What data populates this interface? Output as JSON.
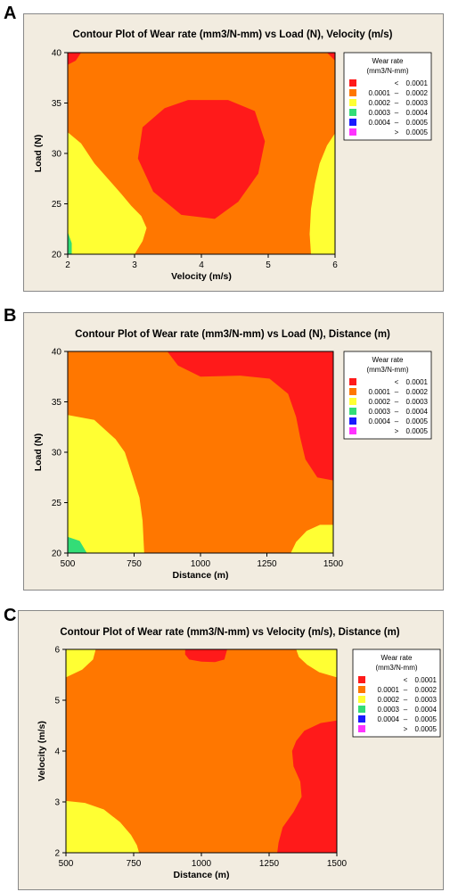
{
  "chart_data": [
    {
      "type": "contour",
      "panel_label": "A",
      "title": "Contour Plot of Wear rate (mm3/N-mm) vs Load (N), Velocity (m/s)",
      "xlabel": "Velocity (m/s)",
      "ylabel": "Load (N)",
      "xlim": [
        2,
        6
      ],
      "ylim": [
        20,
        40
      ],
      "xticks": [
        "2",
        "3",
        "4",
        "5",
        "6"
      ],
      "yticks": [
        "20",
        "25",
        "30",
        "35",
        "40"
      ],
      "background_band": "0.0001 – 0.0002",
      "regions": [
        {
          "band": "< 0.0001",
          "points": [
            [
              2,
              40
            ],
            [
              2.2,
              40
            ],
            [
              2.12,
              39.2
            ],
            [
              2,
              38.8
            ]
          ]
        },
        {
          "band": "< 0.0001",
          "points": [
            [
              5.88,
              40
            ],
            [
              6,
              40
            ],
            [
              6,
              39.2
            ]
          ]
        },
        {
          "band": "< 0.0001",
          "points": [
            [
              3.45,
              34.5
            ],
            [
              3.8,
              35.3
            ],
            [
              4.4,
              35.3
            ],
            [
              4.8,
              34.2
            ],
            [
              4.95,
              31.2
            ],
            [
              4.85,
              28
            ],
            [
              4.55,
              25.2
            ],
            [
              4.2,
              23.5
            ],
            [
              3.7,
              23.9
            ],
            [
              3.28,
              26.2
            ],
            [
              3.05,
              29.5
            ],
            [
              3.12,
              32.6
            ]
          ]
        },
        {
          "band": "0.0002 – 0.0003",
          "points": [
            [
              2,
              32.1
            ],
            [
              2.2,
              31
            ],
            [
              2.4,
              29
            ],
            [
              2.6,
              27.5
            ],
            [
              2.8,
              26
            ],
            [
              2.95,
              24.8
            ],
            [
              3.1,
              23.8
            ],
            [
              3.18,
              22.6
            ],
            [
              3.12,
              21.3
            ],
            [
              3,
              20
            ],
            [
              2,
              20
            ]
          ]
        },
        {
          "band": "0.0002 – 0.0003",
          "points": [
            [
              6,
              32
            ],
            [
              5.88,
              30.8
            ],
            [
              5.77,
              29
            ],
            [
              5.7,
              27
            ],
            [
              5.64,
              24.5
            ],
            [
              5.62,
              22
            ],
            [
              5.64,
              20
            ],
            [
              6,
              20
            ]
          ]
        },
        {
          "band": "0.0003 – 0.0004",
          "points": [
            [
              2,
              22.2
            ],
            [
              2.06,
              21.1
            ],
            [
              2.06,
              20
            ],
            [
              2,
              20
            ]
          ]
        }
      ]
    },
    {
      "type": "contour",
      "panel_label": "B",
      "title": "Contour Plot of Wear rate (mm3/N-mm) vs Load (N), Distance (m)",
      "xlabel": "Distance (m)",
      "ylabel": "Load (N)",
      "xlim": [
        500,
        1500
      ],
      "ylim": [
        20,
        40
      ],
      "xticks": [
        "500",
        "750",
        "1000",
        "1250",
        "1500"
      ],
      "yticks": [
        "20",
        "25",
        "30",
        "35",
        "40"
      ],
      "background_band": "0.0001 – 0.0002",
      "regions": [
        {
          "band": "< 0.0001",
          "points": [
            [
              875,
              40
            ],
            [
              1500,
              40
            ],
            [
              1500,
              27.2
            ],
            [
              1440,
              27.5
            ],
            [
              1395,
              29.3
            ],
            [
              1375,
              31.5
            ],
            [
              1360,
              33.5
            ],
            [
              1330,
              35.8
            ],
            [
              1260,
              37.3
            ],
            [
              1150,
              37.6
            ],
            [
              1000,
              37.5
            ],
            [
              915,
              38.6
            ]
          ]
        },
        {
          "band": "0.0002 – 0.0003",
          "points": [
            [
              500,
              33.7
            ],
            [
              600,
              33.2
            ],
            [
              680,
              31.3
            ],
            [
              715,
              30
            ],
            [
              740,
              28
            ],
            [
              770,
              25.5
            ],
            [
              782,
              23.2
            ],
            [
              788,
              20
            ],
            [
              500,
              20
            ]
          ]
        },
        {
          "band": "0.0002 – 0.0003",
          "points": [
            [
              1340,
              20
            ],
            [
              1360,
              21.1
            ],
            [
              1400,
              22.2
            ],
            [
              1450,
              22.8
            ],
            [
              1500,
              22.8
            ],
            [
              1500,
              20
            ]
          ]
        },
        {
          "band": "0.0003 – 0.0004",
          "points": [
            [
              500,
              21.6
            ],
            [
              545,
              21.2
            ],
            [
              572,
              20
            ],
            [
              500,
              20
            ]
          ]
        }
      ]
    },
    {
      "type": "contour",
      "panel_label": "C",
      "title": "Contour Plot of Wear rate (mm3/N-mm) vs Velocity (m/s), Distance (m)",
      "xlabel": "Distance (m)",
      "ylabel": "Velocity (m/s)",
      "xlim": [
        500,
        1500
      ],
      "ylim": [
        2,
        6
      ],
      "xticks": [
        "500",
        "750",
        "1000",
        "1250",
        "1500"
      ],
      "yticks": [
        "2",
        "3",
        "4",
        "5",
        "6"
      ],
      "background_band": "0.0001 – 0.0002",
      "regions": [
        {
          "band": "< 0.0001",
          "points": [
            [
              940,
              6
            ],
            [
              1095,
              6
            ],
            [
              1085,
              5.8
            ],
            [
              1050,
              5.75
            ],
            [
              1000,
              5.76
            ],
            [
              955,
              5.8
            ],
            [
              940,
              5.9
            ]
          ]
        },
        {
          "band": "< 0.0001",
          "points": [
            [
              1500,
              4.6
            ],
            [
              1440,
              4.55
            ],
            [
              1380,
              4.4
            ],
            [
              1350,
              4.2
            ],
            [
              1335,
              4
            ],
            [
              1340,
              3.7
            ],
            [
              1365,
              3.4
            ],
            [
              1370,
              3.1
            ],
            [
              1340,
              2.8
            ],
            [
              1300,
              2.5
            ],
            [
              1285,
              2.2
            ],
            [
              1280,
              2
            ],
            [
              1500,
              2
            ]
          ]
        },
        {
          "band": "0.0002 – 0.0003",
          "points": [
            [
              500,
              6
            ],
            [
              610,
              6
            ],
            [
              600,
              5.8
            ],
            [
              560,
              5.6
            ],
            [
              500,
              5.45
            ]
          ]
        },
        {
          "band": "0.0002 – 0.0003",
          "points": [
            [
              1350,
              6
            ],
            [
              1500,
              6
            ],
            [
              1500,
              5.45
            ],
            [
              1435,
              5.55
            ],
            [
              1390,
              5.7
            ],
            [
              1360,
              5.85
            ]
          ]
        },
        {
          "band": "0.0002 – 0.0003",
          "points": [
            [
              500,
              3.02
            ],
            [
              570,
              2.98
            ],
            [
              640,
              2.85
            ],
            [
              700,
              2.6
            ],
            [
              740,
              2.35
            ],
            [
              762,
              2.15
            ],
            [
              770,
              2
            ],
            [
              500,
              2
            ]
          ]
        }
      ]
    }
  ],
  "legend": {
    "title_line1": "Wear rate",
    "title_line2": "(mm3/N-mm)",
    "entries": [
      {
        "lo": "",
        "sep": "<",
        "hi": "0.0001",
        "color": "#ff1a1a"
      },
      {
        "lo": "0.0001",
        "sep": "–",
        "hi": "0.0002",
        "color": "#ff7700"
      },
      {
        "lo": "0.0002",
        "sep": "–",
        "hi": "0.0003",
        "color": "#ffff33"
      },
      {
        "lo": "0.0003",
        "sep": "–",
        "hi": "0.0004",
        "color": "#33dd77"
      },
      {
        "lo": "0.0004",
        "sep": "–",
        "hi": "0.0005",
        "color": "#1a1aff"
      },
      {
        "lo": "",
        "sep": ">",
        "hi": "0.0005",
        "color": "#ff33ff"
      }
    ]
  },
  "colors": {
    "< 0.0001": "#ff1a1a",
    "0.0001 – 0.0002": "#ff7700",
    "0.0002 – 0.0003": "#ffff33",
    "0.0003 – 0.0004": "#33dd77",
    "0.0004 – 0.0005": "#1a1aff",
    "> 0.0005": "#ff33ff"
  }
}
